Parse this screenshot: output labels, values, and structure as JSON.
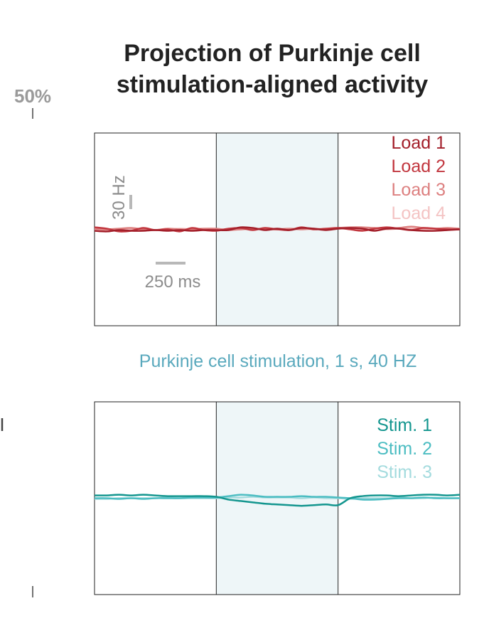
{
  "figure": {
    "title_line1": "Projection of Purkinje cell",
    "title_line2": "stimulation-aligned activity",
    "scale_percent_label": "50%",
    "stim_caption": "Purkinje cell stimulation, 1 s, 40 HZ",
    "stim_caption_color": "#5aa9bd",
    "stim_shade_color": "#eef6f8",
    "scalebar_color": "#b8b8b8",
    "scalebar_y_label": "30 Hz",
    "scalebar_x_label": "250 ms"
  },
  "chart_data": [
    {
      "type": "line",
      "panel": "top",
      "x_unit": "ms",
      "x": [
        -1000,
        -900,
        -800,
        -700,
        -600,
        -500,
        -400,
        -300,
        -200,
        -100,
        0,
        100,
        200,
        300,
        400,
        500,
        600,
        700,
        800,
        900,
        1000,
        1100,
        1200,
        1300,
        1400,
        1500,
        1600,
        1700,
        1800,
        1900,
        2000
      ],
      "xlim": [
        -1000,
        2000
      ],
      "stimulus_window": [
        0,
        1000
      ],
      "ylim": [
        -1,
        1
      ],
      "grid": false,
      "legend_position": "top-right",
      "series": [
        {
          "name": "Load 1",
          "color": "#a31f2a",
          "values": [
            -0.02,
            -0.03,
            -0.01,
            -0.02,
            -0.02,
            -0.01,
            -0.02,
            -0.01,
            -0.02,
            -0.01,
            -0.01,
            -0.01,
            0.03,
            0.02,
            -0.01,
            0.01,
            -0.01,
            0.02,
            0.01,
            -0.01,
            0.01,
            0.02,
            0.01,
            -0.02,
            0.01,
            0.01,
            -0.01,
            -0.02,
            -0.02,
            -0.01,
            0.0
          ]
        },
        {
          "name": "Load 2",
          "color": "#c2373f",
          "values": [
            0.03,
            0.01,
            -0.03,
            -0.02,
            0.02,
            -0.01,
            0.0,
            -0.03,
            0.02,
            -0.01,
            -0.02,
            0.01,
            0.02,
            -0.01,
            0.02,
            0.0,
            -0.01,
            0.03,
            0.0,
            0.01,
            0.02,
            0.0,
            -0.02,
            0.01,
            0.03,
            0.01,
            -0.01,
            0.02,
            0.01,
            0.0,
            0.0
          ]
        },
        {
          "name": "Load 3",
          "color": "#dd8080",
          "values": [
            0.01,
            0.0,
            0.01,
            0.02,
            0.0,
            -0.01,
            0.01,
            0.0,
            0.0,
            0.01,
            0.01,
            -0.01,
            0.0,
            0.01,
            0.0,
            0.0,
            0.01,
            0.0,
            0.01,
            0.0,
            0.02,
            0.03,
            0.03,
            0.02,
            0.01,
            0.02,
            0.04,
            0.02,
            0.01,
            0.02,
            0.01
          ]
        },
        {
          "name": "Load 4",
          "color": "#f4c4c4",
          "values": [
            0.0,
            -0.01,
            0.0,
            0.0,
            0.0,
            -0.01,
            0.0,
            0.01,
            0.0,
            0.0,
            0.0,
            0.0,
            0.0,
            0.01,
            0.01,
            0.01,
            0.0,
            0.01,
            0.0,
            0.01,
            0.01,
            0.01,
            0.0,
            0.01,
            0.0,
            0.01,
            0.01,
            0.0,
            0.01,
            0.0,
            0.0
          ]
        }
      ]
    },
    {
      "type": "line",
      "panel": "bottom",
      "x_unit": "ms",
      "x": [
        -1000,
        -900,
        -800,
        -700,
        -600,
        -500,
        -400,
        -300,
        -200,
        -100,
        0,
        100,
        200,
        300,
        400,
        500,
        600,
        700,
        800,
        900,
        1000,
        1100,
        1200,
        1300,
        1400,
        1500,
        1600,
        1700,
        1800,
        1900,
        2000
      ],
      "xlim": [
        -1000,
        2000
      ],
      "stimulus_window": [
        0,
        1000
      ],
      "ylim": [
        -1,
        1
      ],
      "grid": false,
      "legend_position": "top-right",
      "series": [
        {
          "name": "Stim. 1",
          "color": "#14968f",
          "values": [
            0.04,
            0.04,
            0.05,
            0.04,
            0.05,
            0.04,
            0.03,
            0.03,
            0.03,
            0.03,
            0.02,
            -0.02,
            -0.04,
            -0.06,
            -0.08,
            -0.09,
            -0.1,
            -0.11,
            -0.1,
            -0.09,
            -0.1,
            0.0,
            0.03,
            0.04,
            0.04,
            0.03,
            0.04,
            0.05,
            0.05,
            0.04,
            0.05
          ]
        },
        {
          "name": "Stim. 2",
          "color": "#4cbdc2",
          "values": [
            0.0,
            0.0,
            -0.01,
            0.0,
            -0.01,
            0.0,
            0.0,
            0.0,
            0.01,
            0.01,
            0.01,
            0.03,
            0.05,
            0.04,
            0.02,
            0.02,
            0.02,
            0.03,
            0.02,
            0.02,
            0.01,
            0.0,
            -0.02,
            -0.02,
            -0.01,
            0.0,
            0.0,
            0.01,
            0.0,
            0.0,
            0.0
          ]
        },
        {
          "name": "Stim. 3",
          "color": "#a4dbde",
          "values": [
            -0.01,
            -0.01,
            0.0,
            0.0,
            0.0,
            0.0,
            0.01,
            0.0,
            0.0,
            0.0,
            0.0,
            0.01,
            0.01,
            0.02,
            0.01,
            0.01,
            0.01,
            0.0,
            0.01,
            0.0,
            0.0,
            -0.01,
            0.0,
            0.0,
            0.0,
            0.01,
            0.0,
            0.0,
            0.01,
            0.0,
            0.0
          ]
        }
      ]
    }
  ]
}
